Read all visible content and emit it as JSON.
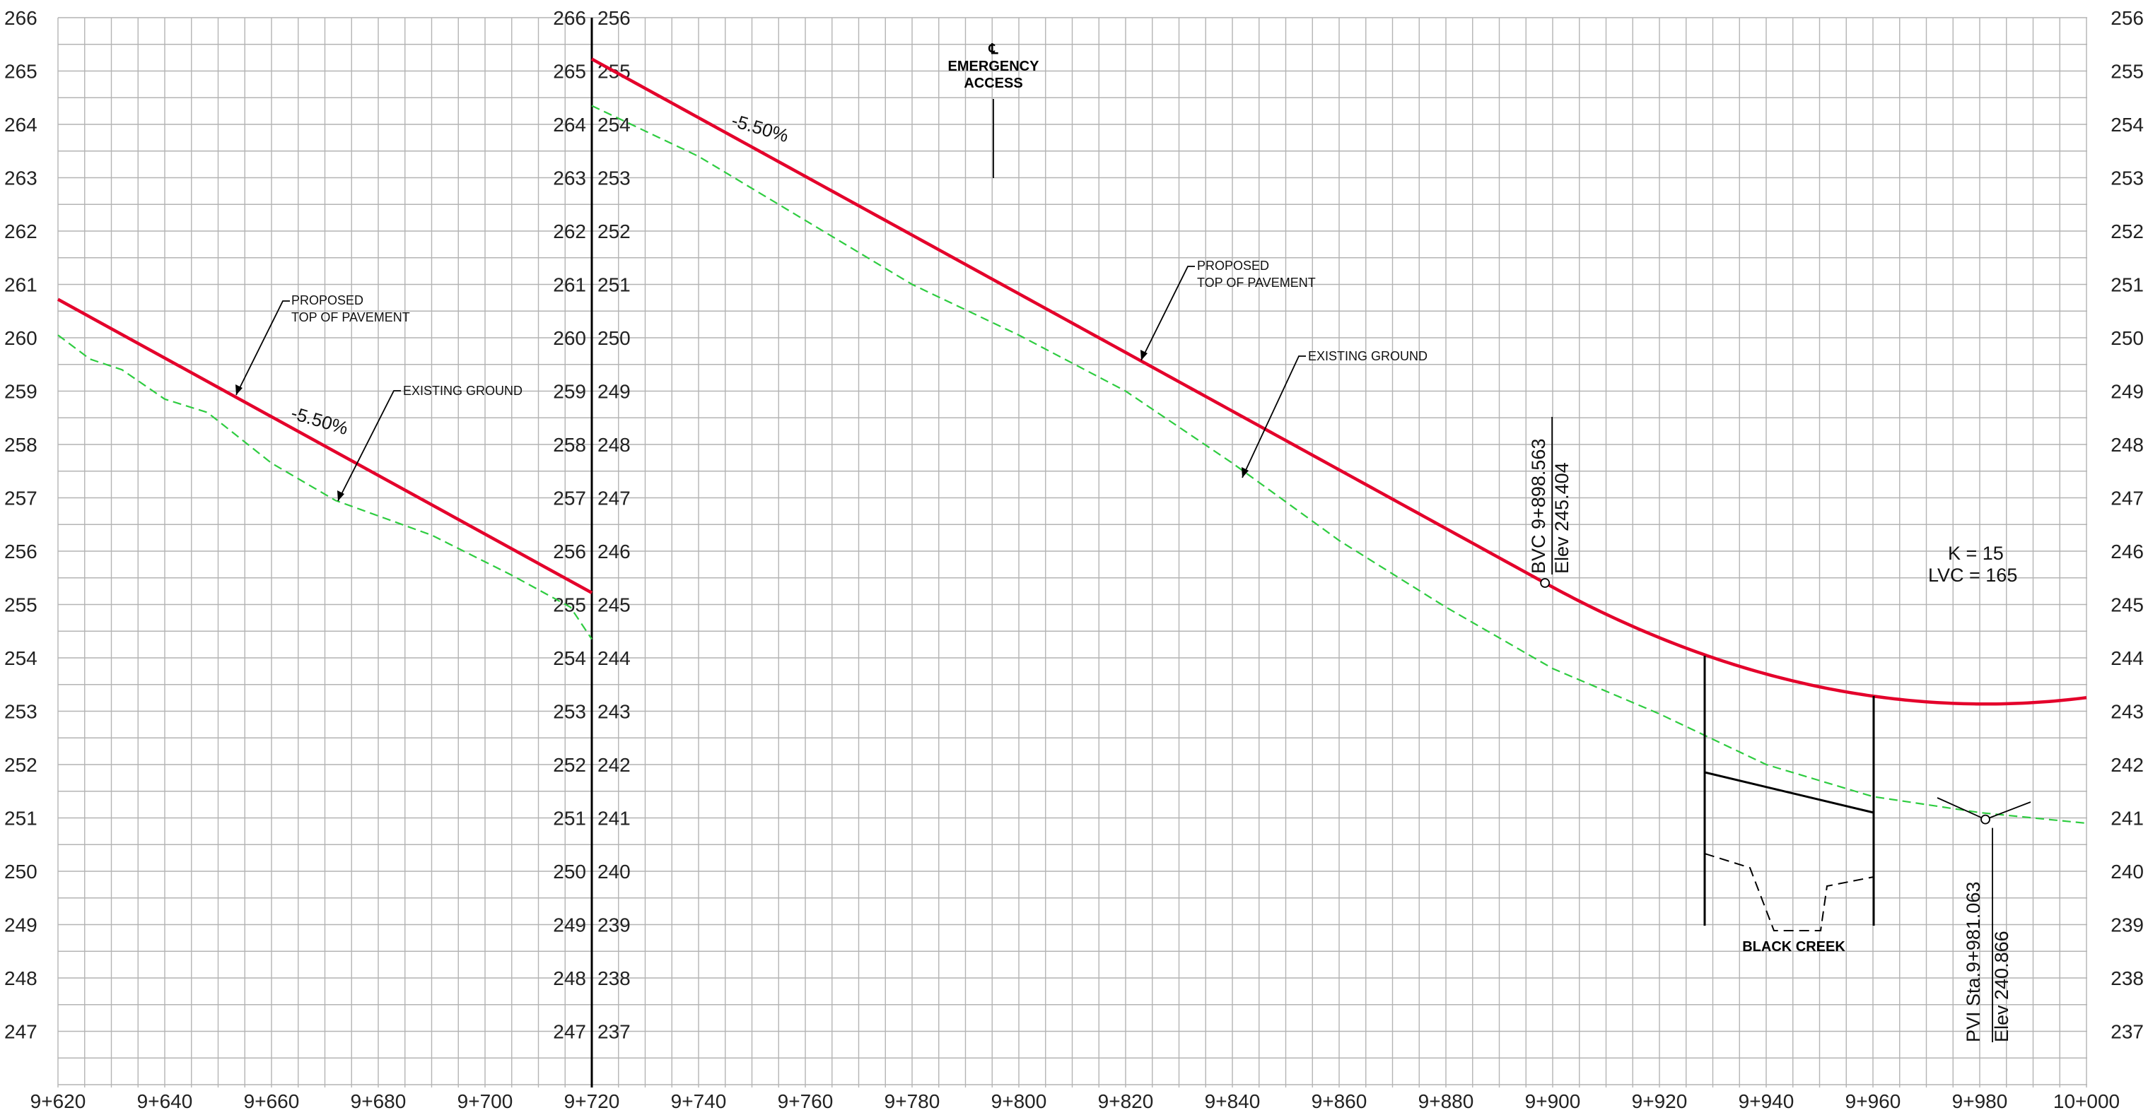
{
  "left_panel": {
    "elevation_ticks": [
      "266",
      "265",
      "264",
      "263",
      "262",
      "261",
      "260",
      "259",
      "258",
      "257",
      "256",
      "255",
      "254",
      "253",
      "252",
      "251",
      "250",
      "249",
      "248",
      "247"
    ],
    "station_ticks": [
      "9+620",
      "9+640",
      "9+660",
      "9+680",
      "9+700"
    ],
    "proposed_label": [
      "PROPOSED",
      "TOP OF PAVEMENT"
    ],
    "existing_label": "EXISTING GROUND",
    "grade_label": "-5.50%",
    "proposed_profile": [
      [
        9620,
        260.72
      ],
      [
        9720,
        255.22
      ]
    ],
    "existing_profile": [
      [
        9620,
        260.05
      ],
      [
        9626,
        259.6
      ],
      [
        9632,
        259.4
      ],
      [
        9640,
        258.85
      ],
      [
        9648,
        258.6
      ],
      [
        9660,
        257.65
      ],
      [
        9672,
        256.95
      ],
      [
        9690,
        256.3
      ],
      [
        9705,
        255.55
      ],
      [
        9716,
        254.95
      ],
      [
        9720,
        254.35
      ]
    ]
  },
  "right_panel": {
    "elevation_ticks": [
      "256",
      "255",
      "254",
      "253",
      "252",
      "251",
      "250",
      "249",
      "248",
      "247",
      "246",
      "245",
      "244",
      "243",
      "242",
      "241",
      "240",
      "239",
      "238",
      "237"
    ],
    "station_ticks": [
      "9+720",
      "9+740",
      "9+760",
      "9+780",
      "9+800",
      "9+820",
      "9+840",
      "9+860",
      "9+880",
      "9+900",
      "9+920",
      "9+940",
      "9+960",
      "9+980",
      "10+000"
    ],
    "cl_symbol": "℄",
    "emergency_access_label": [
      "EMERGENCY",
      "ACCESS"
    ],
    "proposed_label": [
      "PROPOSED",
      "TOP OF PAVEMENT"
    ],
    "existing_label": "EXISTING GROUND",
    "grade_label": "-5.50%",
    "bvc_label": "BVC  9+898.563",
    "bvc_elev_label": "Elev  245.404",
    "k_label": "K  =  15",
    "lvc_label": "LVC  =  165",
    "pvi_label": "PVI  Sta.9+981.063",
    "pvi_elev_label": "Elev  240.866",
    "creek_label": "BLACK  CREEK",
    "bvc": {
      "sta": 9898.563,
      "elev": 245.404
    },
    "pvi": {
      "sta": 9981.063,
      "elev": 240.866
    },
    "grade_in_pct": -5.5,
    "k": 15,
    "lvc": 165,
    "existing_profile": [
      [
        9720,
        254.35
      ],
      [
        9740,
        253.4
      ],
      [
        9760,
        252.2
      ],
      [
        9780,
        251
      ],
      [
        9800,
        250.05
      ],
      [
        9820,
        249.0
      ],
      [
        9840,
        247.65
      ],
      [
        9860,
        246.2
      ],
      [
        9880,
        244.95
      ],
      [
        9900,
        243.8
      ],
      [
        9920,
        242.95
      ],
      [
        9940,
        242.0
      ],
      [
        9960,
        241.4
      ],
      [
        9980,
        241.1
      ],
      [
        10000,
        240.9
      ]
    ]
  },
  "colors": {
    "proposed": "#e4002b",
    "existing": "#2ecc40",
    "grid": "#b4b4b4",
    "ink": "#000000"
  }
}
